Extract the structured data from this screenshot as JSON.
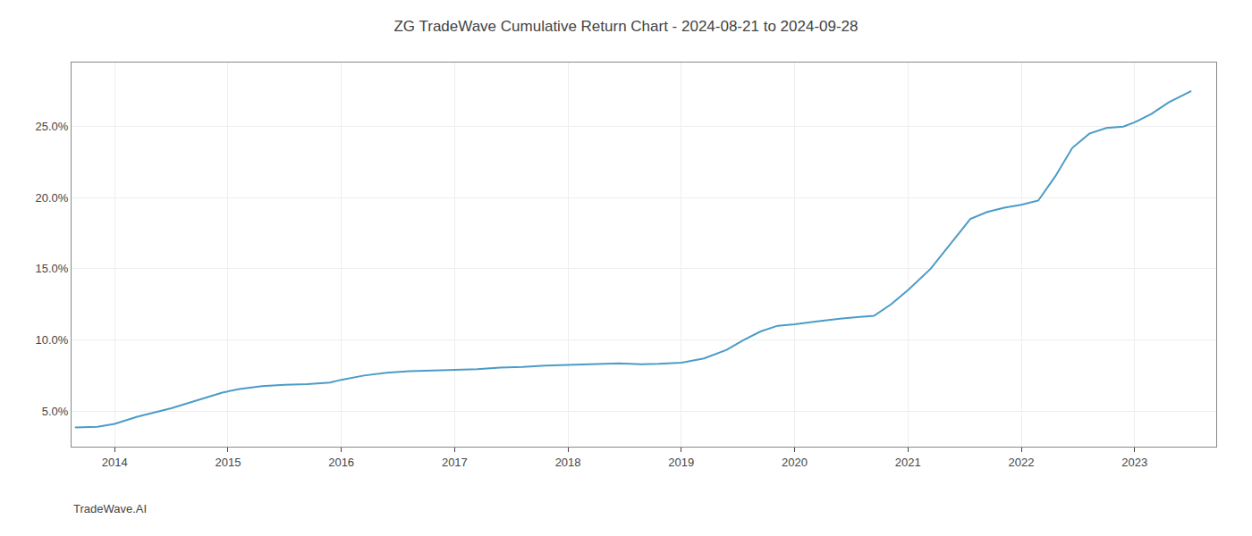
{
  "chart_data": {
    "type": "line",
    "title": "ZG TradeWave Cumulative Return Chart - 2024-08-21 to 2024-09-28",
    "annotations": [
      "TradeWave.AI"
    ],
    "color": "#4a9cc7",
    "grid": true,
    "x": [
      2013.65,
      2013.85,
      2014.0,
      2014.2,
      2014.5,
      2014.75,
      2014.95,
      2015.1,
      2015.3,
      2015.5,
      2015.7,
      2015.9,
      2016.0,
      2016.2,
      2016.4,
      2016.6,
      2016.8,
      2017.0,
      2017.2,
      2017.4,
      2017.6,
      2017.8,
      2018.0,
      2018.2,
      2018.45,
      2018.55,
      2018.65,
      2018.8,
      2019.0,
      2019.2,
      2019.4,
      2019.55,
      2019.7,
      2019.85,
      2020.0,
      2020.2,
      2020.4,
      2020.55,
      2020.7,
      2020.85,
      2021.0,
      2021.2,
      2021.4,
      2021.55,
      2021.7,
      2021.85,
      2022.0,
      2022.15,
      2022.3,
      2022.45,
      2022.6,
      2022.75,
      2022.9,
      2023.0,
      2023.15,
      2023.3,
      2023.5
    ],
    "values": [
      3.85,
      3.9,
      4.1,
      4.6,
      5.2,
      5.8,
      6.3,
      6.55,
      6.75,
      6.85,
      6.9,
      7.0,
      7.2,
      7.5,
      7.7,
      7.8,
      7.85,
      7.9,
      7.95,
      8.05,
      8.1,
      8.2,
      8.25,
      8.3,
      8.35,
      8.32,
      8.3,
      8.32,
      8.4,
      8.7,
      9.3,
      10.0,
      10.6,
      11.0,
      11.1,
      11.3,
      11.5,
      11.6,
      11.7,
      12.5,
      13.5,
      15.0,
      17.0,
      18.5,
      19.0,
      19.3,
      19.5,
      19.8,
      21.5,
      23.5,
      24.5,
      24.9,
      25.0,
      25.3,
      25.9,
      26.7,
      27.5
    ],
    "xlim": [
      2013.62,
      2023.72
    ],
    "xticks": [
      2014,
      2015,
      2016,
      2017,
      2018,
      2019,
      2020,
      2021,
      2022,
      2023
    ],
    "ylim": [
      2.5,
      29.5
    ],
    "yticks": [
      {
        "value": 5.0,
        "label": "5.0%"
      },
      {
        "value": 10.0,
        "label": "10.0%"
      },
      {
        "value": 15.0,
        "label": "15.0%"
      },
      {
        "value": 20.0,
        "label": "20.0%"
      },
      {
        "value": 25.0,
        "label": "25.0%"
      }
    ]
  }
}
